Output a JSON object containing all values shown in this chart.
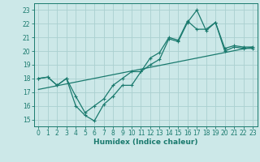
{
  "xlabel": "Humidex (Indice chaleur)",
  "ylabel": "",
  "bg_color": "#cce8e8",
  "line_color": "#1a7a6e",
  "xlim": [
    -0.5,
    23.5
  ],
  "ylim": [
    14.5,
    23.5
  ],
  "xticks": [
    0,
    1,
    2,
    3,
    4,
    5,
    6,
    7,
    8,
    9,
    10,
    11,
    12,
    13,
    14,
    15,
    16,
    17,
    18,
    19,
    20,
    21,
    22,
    23
  ],
  "yticks": [
    15,
    16,
    17,
    18,
    19,
    20,
    21,
    22,
    23
  ],
  "grid_color": "#aad0d0",
  "series1_x": [
    0,
    1,
    2,
    3,
    4,
    5,
    6,
    7,
    8,
    9,
    10,
    11,
    12,
    13,
    14,
    15,
    16,
    17,
    18,
    19,
    20,
    21,
    22,
    23
  ],
  "series1_y": [
    18.0,
    18.1,
    17.5,
    18.0,
    16.0,
    15.3,
    14.9,
    16.1,
    16.7,
    17.5,
    17.5,
    18.5,
    19.0,
    19.4,
    20.9,
    20.7,
    22.1,
    23.0,
    21.5,
    22.1,
    20.0,
    20.3,
    20.2,
    20.2
  ],
  "series2_x": [
    0,
    1,
    2,
    3,
    4,
    5,
    6,
    7,
    8,
    9,
    10,
    11,
    12,
    13,
    14,
    15,
    16,
    17,
    18,
    19,
    20,
    21,
    22,
    23
  ],
  "series2_y": [
    18.0,
    18.1,
    17.5,
    18.0,
    16.7,
    15.5,
    16.0,
    16.5,
    17.5,
    18.0,
    18.5,
    18.5,
    19.5,
    19.9,
    21.0,
    20.8,
    22.2,
    21.6,
    21.6,
    22.1,
    20.2,
    20.4,
    20.3,
    20.3
  ],
  "trend_x": [
    0,
    23
  ],
  "trend_y": [
    17.2,
    20.3
  ],
  "marker_x": [
    0,
    1,
    2,
    3,
    4,
    5,
    6,
    7,
    8,
    9,
    10,
    11,
    12,
    13,
    14,
    15,
    16,
    17,
    18,
    19,
    20,
    21,
    22,
    23
  ]
}
